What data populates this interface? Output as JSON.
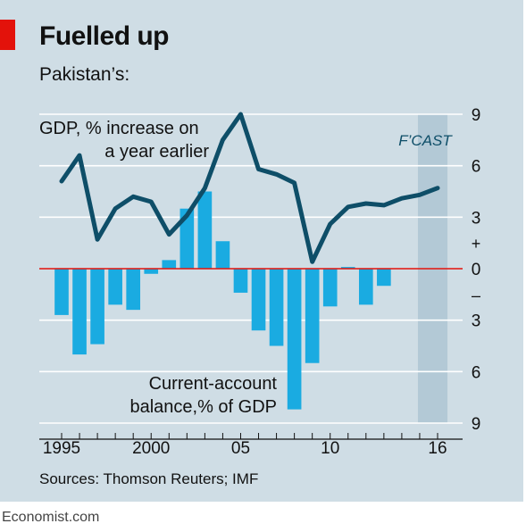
{
  "title": "Fuelled up",
  "subtitle": "Pakistan’s:",
  "source": "Sources: Thomson Reuters; IMF",
  "credit": "Economist.com",
  "colors": {
    "background": "#cfdde5",
    "line": "#0e4e68",
    "bars": "#1aabe1",
    "zero_line": "#e3120b",
    "forecast_band": "#b3c9d6",
    "accent_tag": "#e3120b"
  },
  "chart_data": {
    "type": "bar",
    "x": [
      1995,
      1996,
      1997,
      1998,
      1999,
      2000,
      2001,
      2002,
      2003,
      2004,
      2005,
      2006,
      2007,
      2008,
      2009,
      2010,
      2011,
      2012,
      2013,
      2014,
      2015,
      2016
    ],
    "series": [
      {
        "name": "GDP, % increase on a year earlier",
        "type": "line",
        "values": [
          5.1,
          6.6,
          1.7,
          3.5,
          4.2,
          3.9,
          2.0,
          3.1,
          4.7,
          7.5,
          9.0,
          5.8,
          5.5,
          5.0,
          0.4,
          2.6,
          3.6,
          3.8,
          3.7,
          4.1,
          4.3,
          4.7
        ]
      },
      {
        "name": "Current-account balance,% of GDP",
        "type": "bar",
        "values": [
          -2.7,
          -5.0,
          -4.4,
          -2.1,
          -2.4,
          -0.3,
          0.5,
          3.5,
          4.5,
          1.6,
          -1.4,
          -3.6,
          -4.5,
          -8.2,
          -5.5,
          -2.2,
          0.1,
          -2.1,
          -1.0,
          null,
          null,
          null
        ]
      }
    ],
    "forecast_label": "F’CAST",
    "forecast_range": [
      2015,
      2016
    ],
    "xticks": [
      {
        "value": 1995,
        "label": "1995"
      },
      {
        "value": 2000,
        "label": "2000"
      },
      {
        "value": 2005,
        "label": "05"
      },
      {
        "value": 2010,
        "label": "10"
      },
      {
        "value": 2016,
        "label": "16"
      }
    ],
    "yticks": [
      {
        "value": 9,
        "label": "9"
      },
      {
        "value": 6,
        "label": "6"
      },
      {
        "value": 3,
        "label": "3"
      },
      {
        "value": 0,
        "label": "0"
      },
      {
        "value": -3,
        "label": "3"
      },
      {
        "value": -6,
        "label": "6"
      },
      {
        "value": -9,
        "label": "9"
      }
    ],
    "sign_markers": {
      "plus": "+",
      "minus": "–"
    },
    "ylim": [
      -9,
      9
    ],
    "grid": true,
    "annotations": {
      "line_label": [
        "GDP, % increase on",
        "a year earlier"
      ],
      "bar_label": [
        "Current-account",
        "balance,% of GDP"
      ]
    }
  }
}
